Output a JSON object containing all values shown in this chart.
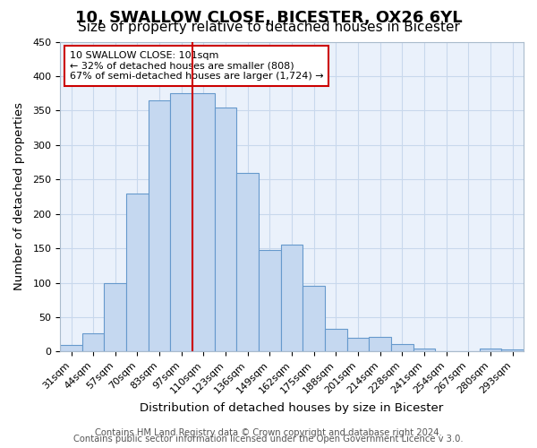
{
  "title": "10, SWALLOW CLOSE, BICESTER, OX26 6YL",
  "subtitle": "Size of property relative to detached houses in Bicester",
  "xlabel": "Distribution of detached houses by size in Bicester",
  "ylabel": "Number of detached properties",
  "bar_labels": [
    "31sqm",
    "44sqm",
    "57sqm",
    "70sqm",
    "83sqm",
    "97sqm",
    "110sqm",
    "123sqm",
    "136sqm",
    "149sqm",
    "162sqm",
    "175sqm",
    "188sqm",
    "201sqm",
    "214sqm",
    "228sqm",
    "241sqm",
    "254sqm",
    "267sqm",
    "280sqm",
    "293sqm"
  ],
  "bar_values": [
    10,
    27,
    100,
    230,
    365,
    375,
    375,
    355,
    260,
    147,
    155,
    95,
    33,
    20,
    22,
    11,
    5,
    1,
    1,
    5,
    3
  ],
  "ylim": [
    0,
    450
  ],
  "yticks": [
    0,
    50,
    100,
    150,
    200,
    250,
    300,
    350,
    400,
    450
  ],
  "bar_color": "#c5d8f0",
  "bar_edge_color": "#6699cc",
  "vline_x": 5.5,
  "vline_color": "#cc0000",
  "annotation_title": "10 SWALLOW CLOSE: 101sqm",
  "annotation_line1": "← 32% of detached houses are smaller (808)",
  "annotation_line2": "67% of semi-detached houses are larger (1,724) →",
  "annotation_box_color": "#ffffff",
  "annotation_box_edge": "#cc0000",
  "footer_line1": "Contains HM Land Registry data © Crown copyright and database right 2024.",
  "footer_line2": "Contains public sector information licensed under the Open Government Licence v 3.0.",
  "bg_color": "#ffffff",
  "axes_bg_color": "#eaf1fb",
  "grid_color": "#c8d8ec",
  "title_fontsize": 13,
  "subtitle_fontsize": 11,
  "axis_label_fontsize": 9.5,
  "tick_fontsize": 8,
  "footer_fontsize": 7.2
}
